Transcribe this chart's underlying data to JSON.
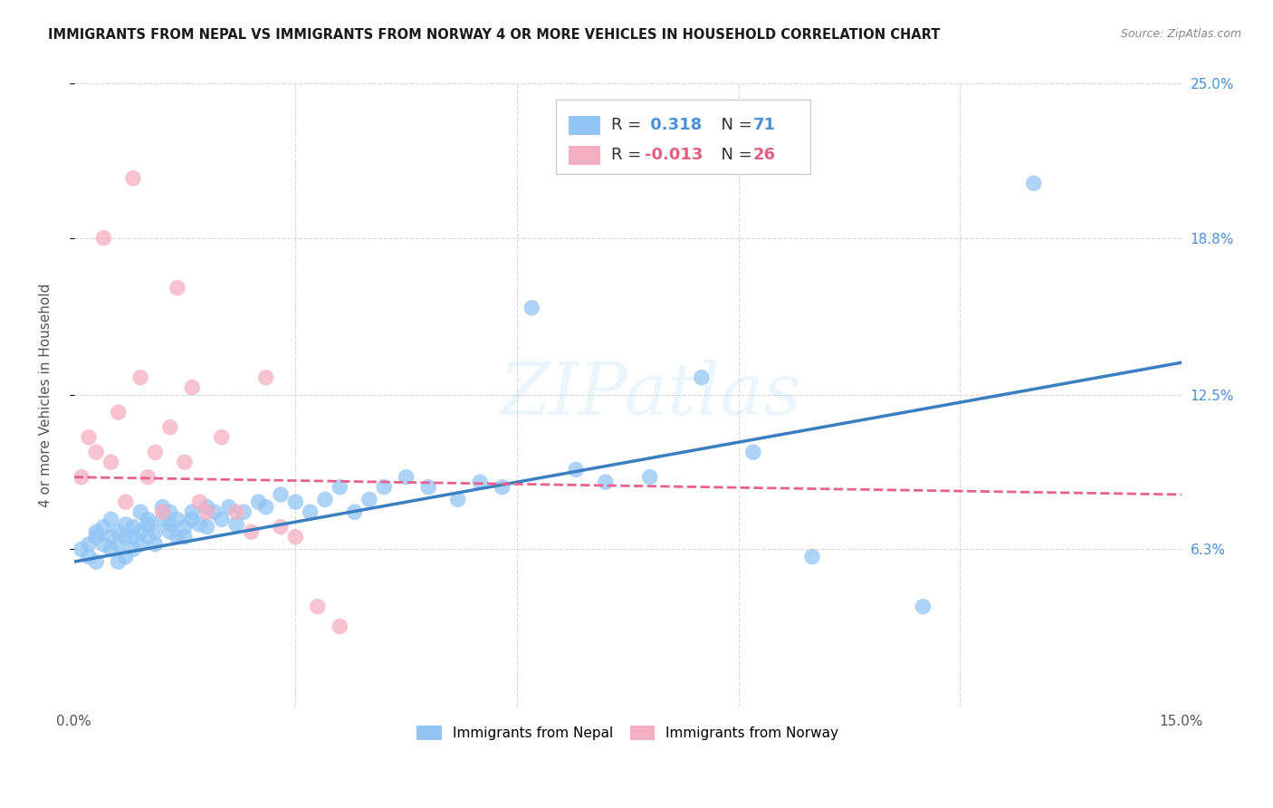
{
  "title": "IMMIGRANTS FROM NEPAL VS IMMIGRANTS FROM NORWAY 4 OR MORE VEHICLES IN HOUSEHOLD CORRELATION CHART",
  "source": "Source: ZipAtlas.com",
  "ylabel": "4 or more Vehicles in Household",
  "x_min": 0.0,
  "x_max": 0.15,
  "y_min": 0.0,
  "y_max": 0.25,
  "y_ticks_right": [
    0.063,
    0.125,
    0.188,
    0.25
  ],
  "y_tick_labels_right": [
    "6.3%",
    "12.5%",
    "18.8%",
    "25.0%"
  ],
  "nepal_color": "#92c5f5",
  "norway_color": "#f5afc2",
  "nepal_line_color": "#3a7fc1",
  "norway_line_color": "#e86090",
  "legend_nepal_R": "0.318",
  "legend_nepal_N": "71",
  "legend_norway_R": "-0.013",
  "legend_norway_N": "26",
  "nepal_scatter_x": [
    0.001,
    0.002,
    0.002,
    0.003,
    0.003,
    0.003,
    0.004,
    0.004,
    0.005,
    0.005,
    0.005,
    0.006,
    0.006,
    0.006,
    0.007,
    0.007,
    0.007,
    0.008,
    0.008,
    0.008,
    0.009,
    0.009,
    0.009,
    0.01,
    0.01,
    0.01,
    0.011,
    0.011,
    0.012,
    0.012,
    0.013,
    0.013,
    0.013,
    0.014,
    0.014,
    0.015,
    0.015,
    0.016,
    0.016,
    0.017,
    0.018,
    0.018,
    0.019,
    0.02,
    0.021,
    0.022,
    0.023,
    0.025,
    0.026,
    0.028,
    0.03,
    0.032,
    0.034,
    0.036,
    0.038,
    0.04,
    0.042,
    0.045,
    0.048,
    0.052,
    0.055,
    0.058,
    0.062,
    0.068,
    0.072,
    0.078,
    0.085,
    0.092,
    0.1,
    0.115,
    0.13
  ],
  "nepal_scatter_y": [
    0.063,
    0.065,
    0.06,
    0.07,
    0.058,
    0.068,
    0.072,
    0.065,
    0.075,
    0.068,
    0.063,
    0.07,
    0.065,
    0.058,
    0.068,
    0.073,
    0.06,
    0.072,
    0.068,
    0.063,
    0.078,
    0.07,
    0.065,
    0.073,
    0.068,
    0.075,
    0.07,
    0.065,
    0.075,
    0.08,
    0.07,
    0.078,
    0.073,
    0.068,
    0.075,
    0.072,
    0.068,
    0.075,
    0.078,
    0.073,
    0.08,
    0.072,
    0.078,
    0.075,
    0.08,
    0.073,
    0.078,
    0.082,
    0.08,
    0.085,
    0.082,
    0.078,
    0.083,
    0.088,
    0.078,
    0.083,
    0.088,
    0.092,
    0.088,
    0.083,
    0.09,
    0.088,
    0.16,
    0.095,
    0.09,
    0.092,
    0.132,
    0.102,
    0.06,
    0.04,
    0.21
  ],
  "norway_scatter_x": [
    0.001,
    0.002,
    0.003,
    0.004,
    0.005,
    0.006,
    0.007,
    0.008,
    0.009,
    0.01,
    0.011,
    0.012,
    0.013,
    0.014,
    0.015,
    0.016,
    0.017,
    0.018,
    0.02,
    0.022,
    0.024,
    0.026,
    0.028,
    0.03,
    0.033,
    0.036
  ],
  "norway_scatter_y": [
    0.092,
    0.108,
    0.102,
    0.188,
    0.098,
    0.118,
    0.082,
    0.212,
    0.132,
    0.092,
    0.102,
    0.078,
    0.112,
    0.168,
    0.098,
    0.128,
    0.082,
    0.078,
    0.108,
    0.078,
    0.07,
    0.132,
    0.072,
    0.068,
    0.04,
    0.032
  ],
  "nepal_trend_x": [
    0.0,
    0.15
  ],
  "nepal_trend_y": [
    0.058,
    0.138
  ],
  "norway_trend_x": [
    0.0,
    0.15
  ],
  "norway_trend_y": [
    0.092,
    0.085
  ],
  "background_color": "#ffffff",
  "grid_color": "#d8d8d8"
}
